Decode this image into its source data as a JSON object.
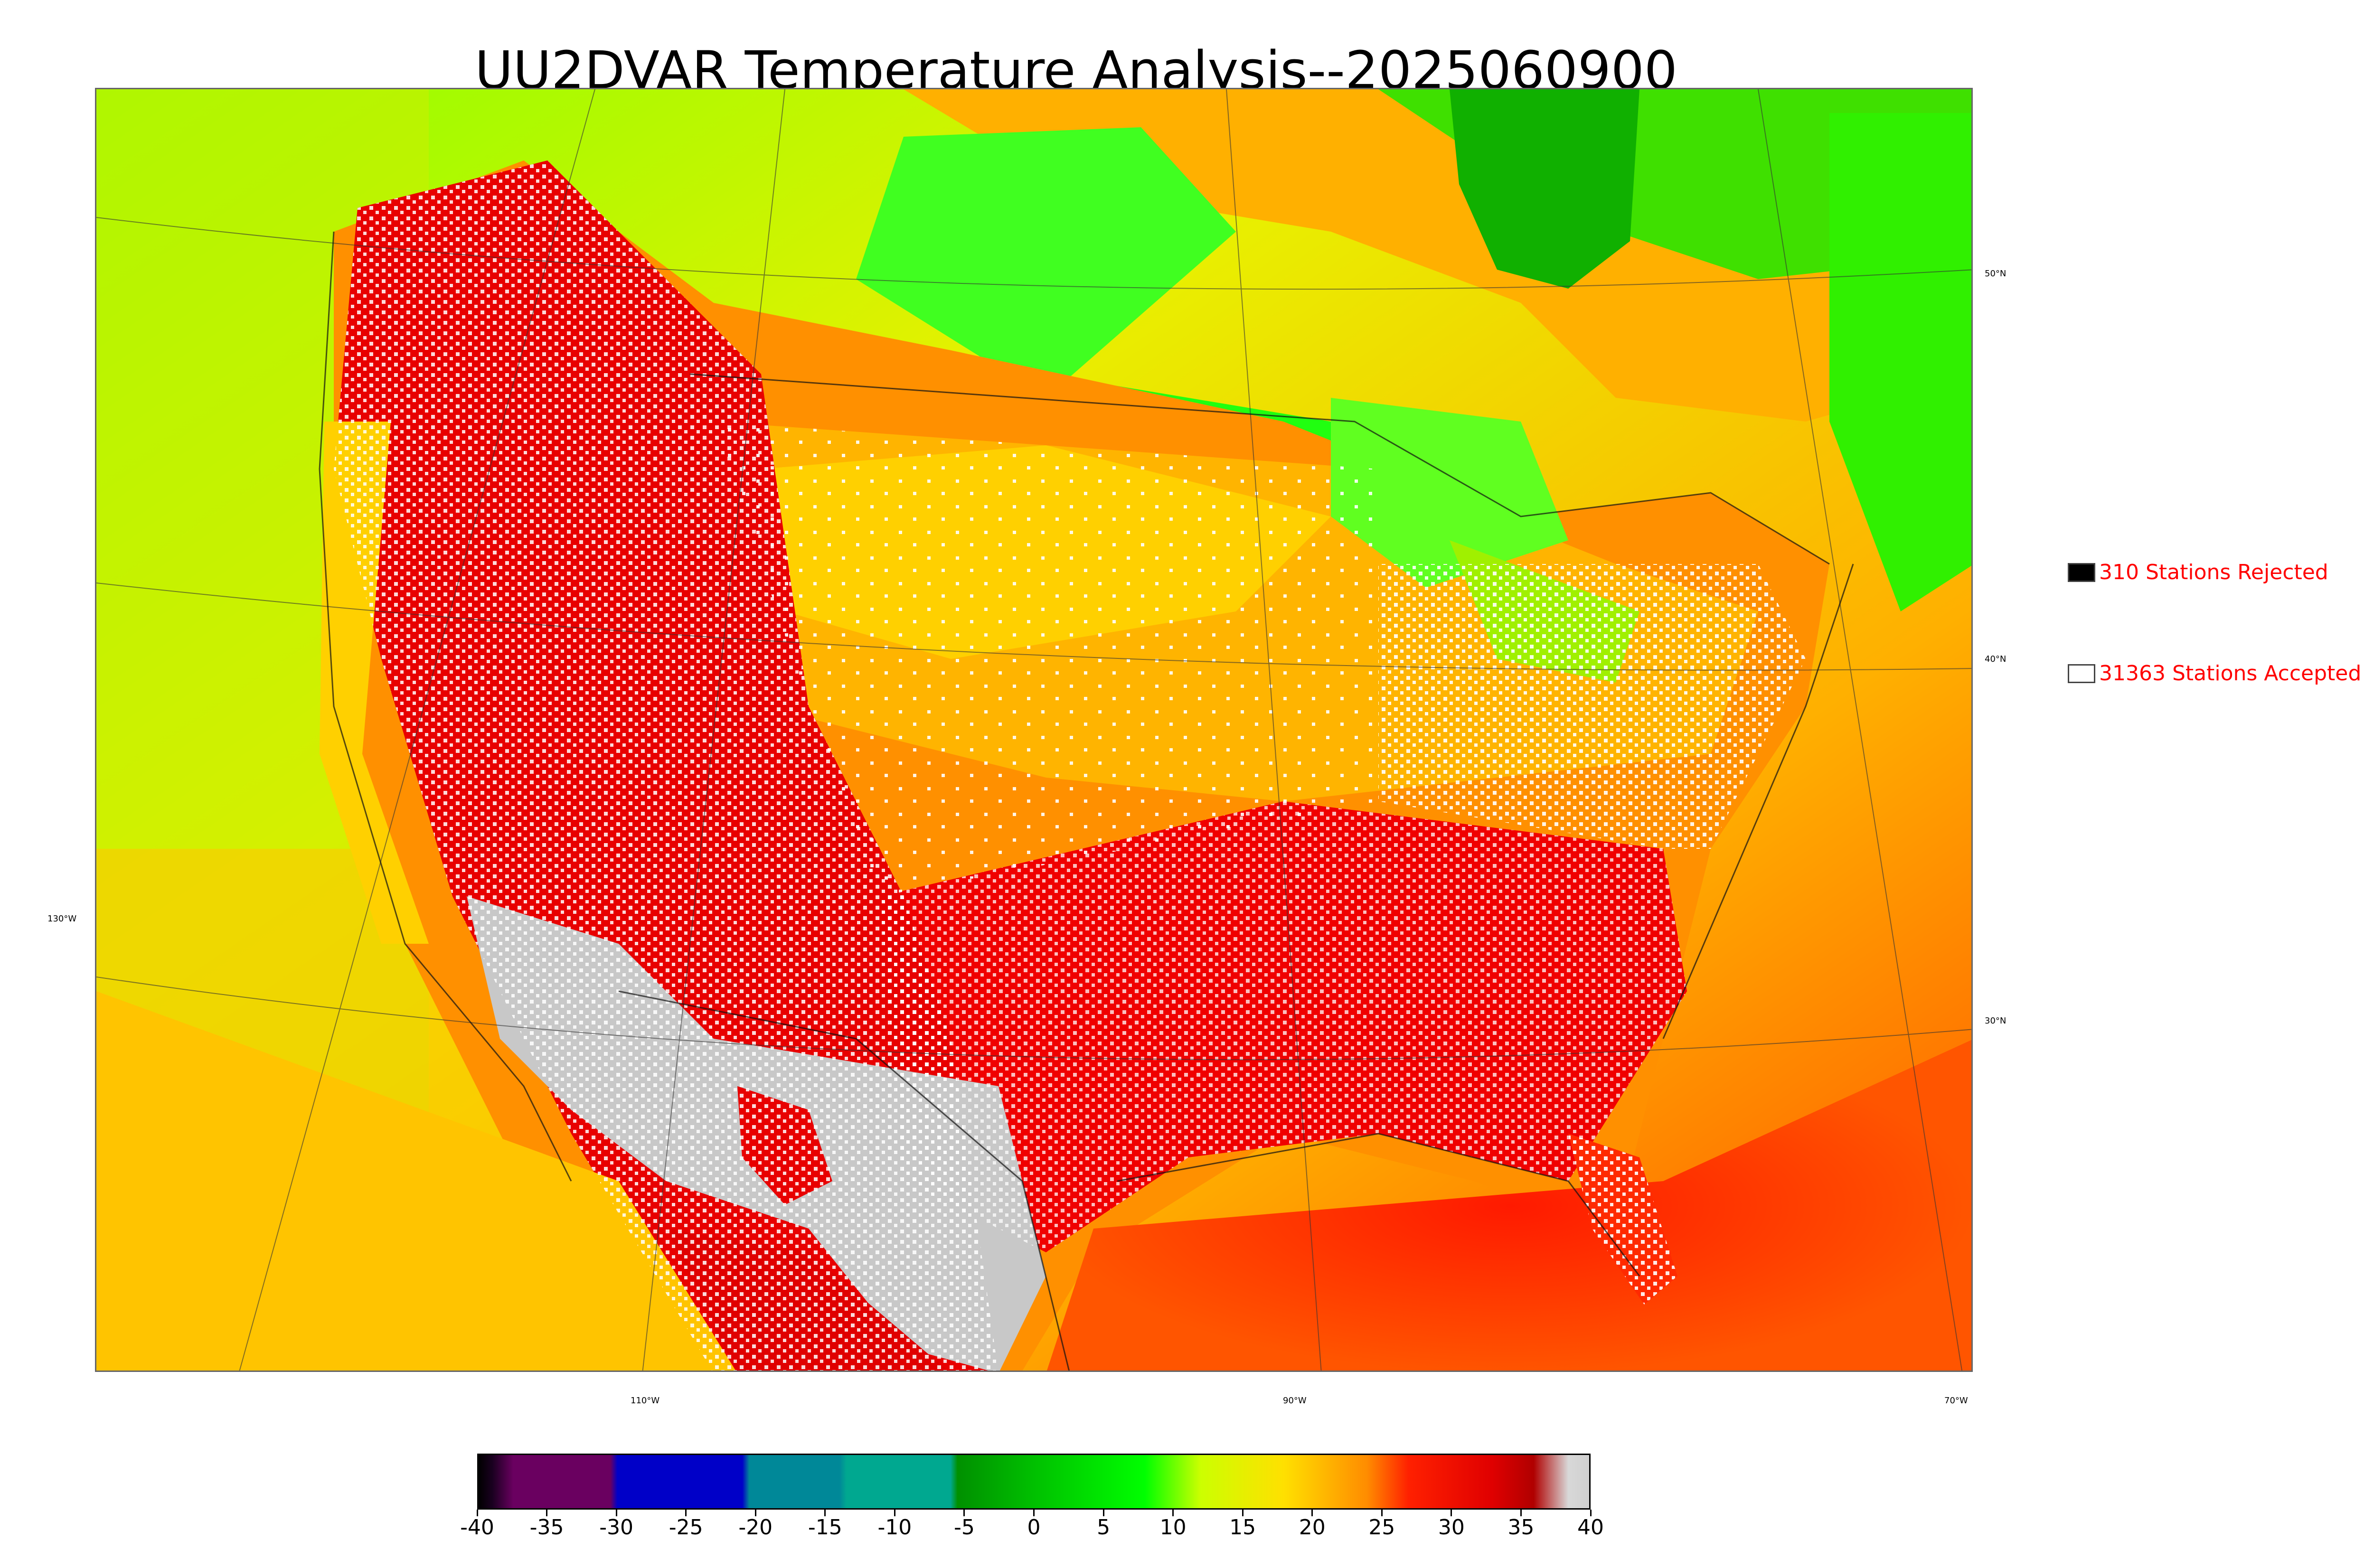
{
  "title": "UU2DVAR Temperature Analysis--2025060900",
  "map": {
    "lat_labels": [
      "50°N",
      "40°N",
      "30°N"
    ],
    "lon_labels": [
      "130°W",
      "110°W",
      "90°W",
      "70°W"
    ]
  },
  "legend": {
    "rejected": {
      "label": "310 Stations Rejected",
      "swatch_color": "#000000",
      "text_color": "#ff0000"
    },
    "accepted": {
      "label": "31363 Stations Accepted",
      "swatch_color": "#ffffff",
      "text_color": "#ff0000"
    }
  },
  "colorbar": {
    "min": -40,
    "max": 40,
    "tick_labels": [
      "-40",
      "-35",
      "-30",
      "-25",
      "-20",
      "-15",
      "-10",
      "-5",
      "0",
      "5",
      "10",
      "15",
      "20",
      "25",
      "30",
      "35",
      "40"
    ],
    "stops": [
      {
        "value": -40,
        "color": "#000000"
      },
      {
        "value": -39,
        "color": "#1a0020"
      },
      {
        "value": -37.5,
        "color": "#6a0060"
      },
      {
        "value": -30.5,
        "color": "#6a0060"
      },
      {
        "value": -30,
        "color": "#0000c8"
      },
      {
        "value": -21,
        "color": "#0000c8"
      },
      {
        "value": -20.5,
        "color": "#008898"
      },
      {
        "value": -14,
        "color": "#008898"
      },
      {
        "value": -13.5,
        "color": "#00a890"
      },
      {
        "value": -6,
        "color": "#00a890"
      },
      {
        "value": -5.5,
        "color": "#009000"
      },
      {
        "value": 0,
        "color": "#00c000"
      },
      {
        "value": 8,
        "color": "#00ff00"
      },
      {
        "value": 12,
        "color": "#ccff00"
      },
      {
        "value": 18,
        "color": "#ffe000"
      },
      {
        "value": 24,
        "color": "#ff8c00"
      },
      {
        "value": 27,
        "color": "#ff2000"
      },
      {
        "value": 33,
        "color": "#e00000"
      },
      {
        "value": 36,
        "color": "#b00000"
      },
      {
        "value": 38.5,
        "color": "#d8d8d8"
      },
      {
        "value": 40,
        "color": "#d0d0d0"
      }
    ]
  }
}
